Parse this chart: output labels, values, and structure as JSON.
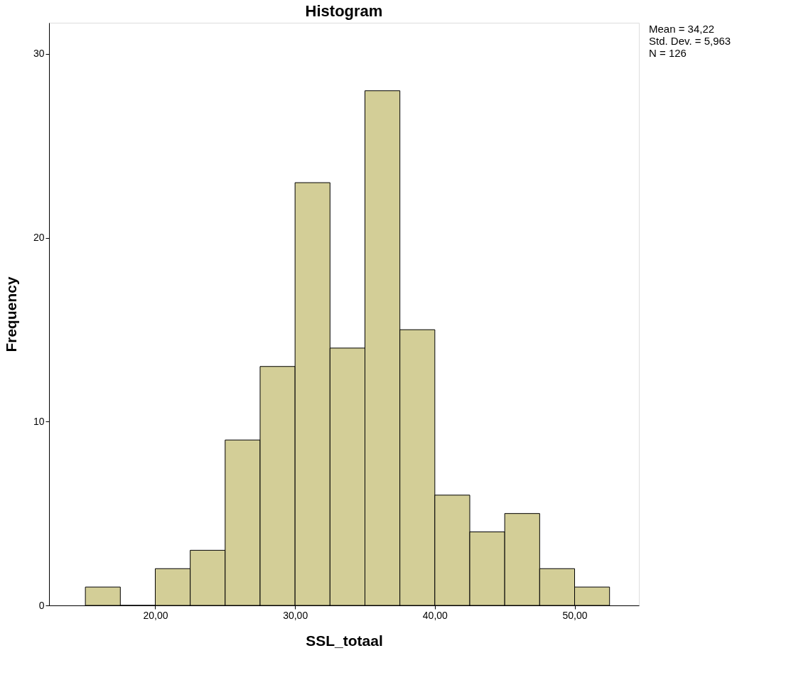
{
  "chart_data": {
    "type": "histogram",
    "title": "Histogram",
    "xlabel": "SSL_totaal",
    "ylabel": "Frequency",
    "bins": [
      15,
      17.5,
      20,
      22.5,
      25,
      27.5,
      30,
      32.5,
      35,
      37.5,
      40,
      42.5,
      45,
      47.5,
      50,
      52.5
    ],
    "values": [
      1,
      0,
      2,
      3,
      9,
      13,
      23,
      14,
      28,
      15,
      6,
      4,
      5,
      2,
      1
    ],
    "color": "#d3ce97",
    "xlim": [
      12.4,
      54.6
    ],
    "xticks": [
      {
        "value": 20,
        "label": "20,00"
      },
      {
        "value": 30,
        "label": "30,00"
      },
      {
        "value": 40,
        "label": "40,00"
      },
      {
        "value": 50,
        "label": "50,00"
      }
    ],
    "ylim": [
      0,
      31.7
    ],
    "yticks": [
      0,
      10,
      20,
      30
    ],
    "grid": false,
    "annotations": [
      "Mean = 34,22",
      "Std. Dev. = 5,963",
      "N = 126"
    ]
  }
}
